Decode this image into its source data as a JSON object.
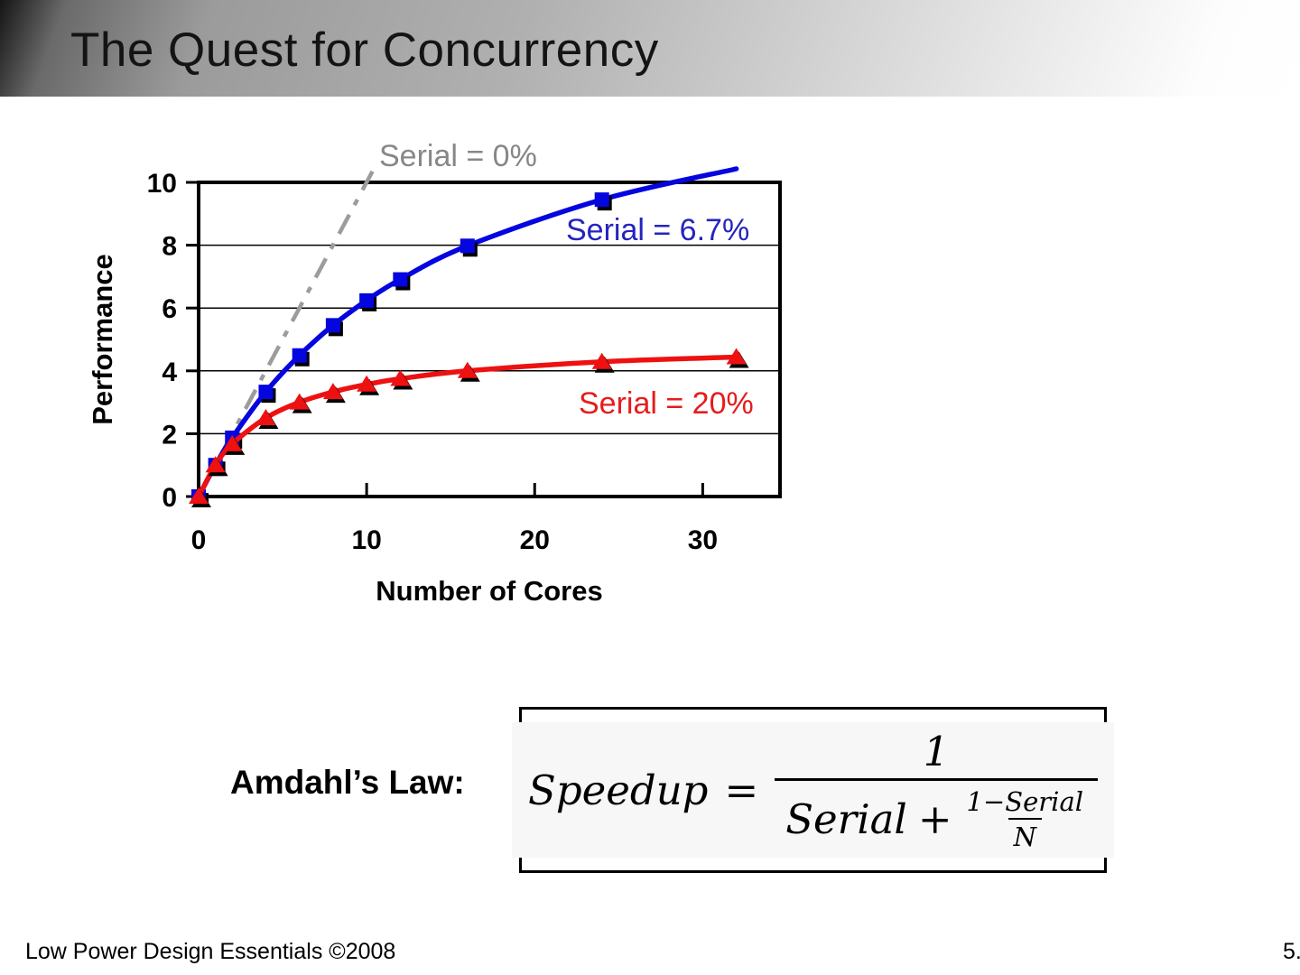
{
  "header": {
    "title": "The Quest for Concurrency"
  },
  "chart_data": {
    "type": "line",
    "title": "",
    "xlabel": "Number of Cores",
    "ylabel": "Performance",
    "xlim": [
      0,
      34.6
    ],
    "ylim": [
      0,
      10
    ],
    "x_ticks": [
      0,
      10,
      20,
      30
    ],
    "y_ticks": [
      0,
      2,
      4,
      6,
      8,
      10
    ],
    "grid": "horizontal-only",
    "legend": "inline-colored-labels",
    "series": [
      {
        "name": "Serial = 0%",
        "label_color": "#878787",
        "line_color": "#9c9c9c",
        "style": "dash-dot",
        "marker": "none",
        "x": [
          0,
          10.35
        ],
        "y": [
          0,
          10.35
        ],
        "note": "ideal linear speedup, y = x"
      },
      {
        "name": "Serial = 6.7%",
        "label_color": "#2424BE",
        "line_color": "#0505E0",
        "style": "solid",
        "marker": "square",
        "marker_last_x": 24,
        "x": [
          0,
          1,
          2,
          4,
          6,
          8,
          10,
          12,
          16,
          24,
          32
        ],
        "y": [
          0,
          1.0,
          1.87,
          3.33,
          4.49,
          5.45,
          6.24,
          6.91,
          7.98,
          9.45,
          10.43
        ]
      },
      {
        "name": "Serial = 20%",
        "label_color": "#E51C1C",
        "line_color": "#EE1111",
        "style": "solid",
        "marker": "triangle",
        "x": [
          0,
          1,
          2,
          4,
          6,
          8,
          10,
          12,
          16,
          24,
          32
        ],
        "y": [
          0,
          1.0,
          1.67,
          2.5,
          3.0,
          3.33,
          3.57,
          3.75,
          4.0,
          4.29,
          4.44
        ]
      }
    ]
  },
  "amdahl": {
    "label": "Amdahl’s Law:",
    "formula": {
      "lhs": "Speedup",
      "eq": "=",
      "numerator": "1",
      "den_left": "Serial",
      "den_plus": "+",
      "inner_num": "1−Serial",
      "inner_den": "N"
    }
  },
  "footer": {
    "left": "Low Power Design Essentials ©2008",
    "right": "5."
  }
}
